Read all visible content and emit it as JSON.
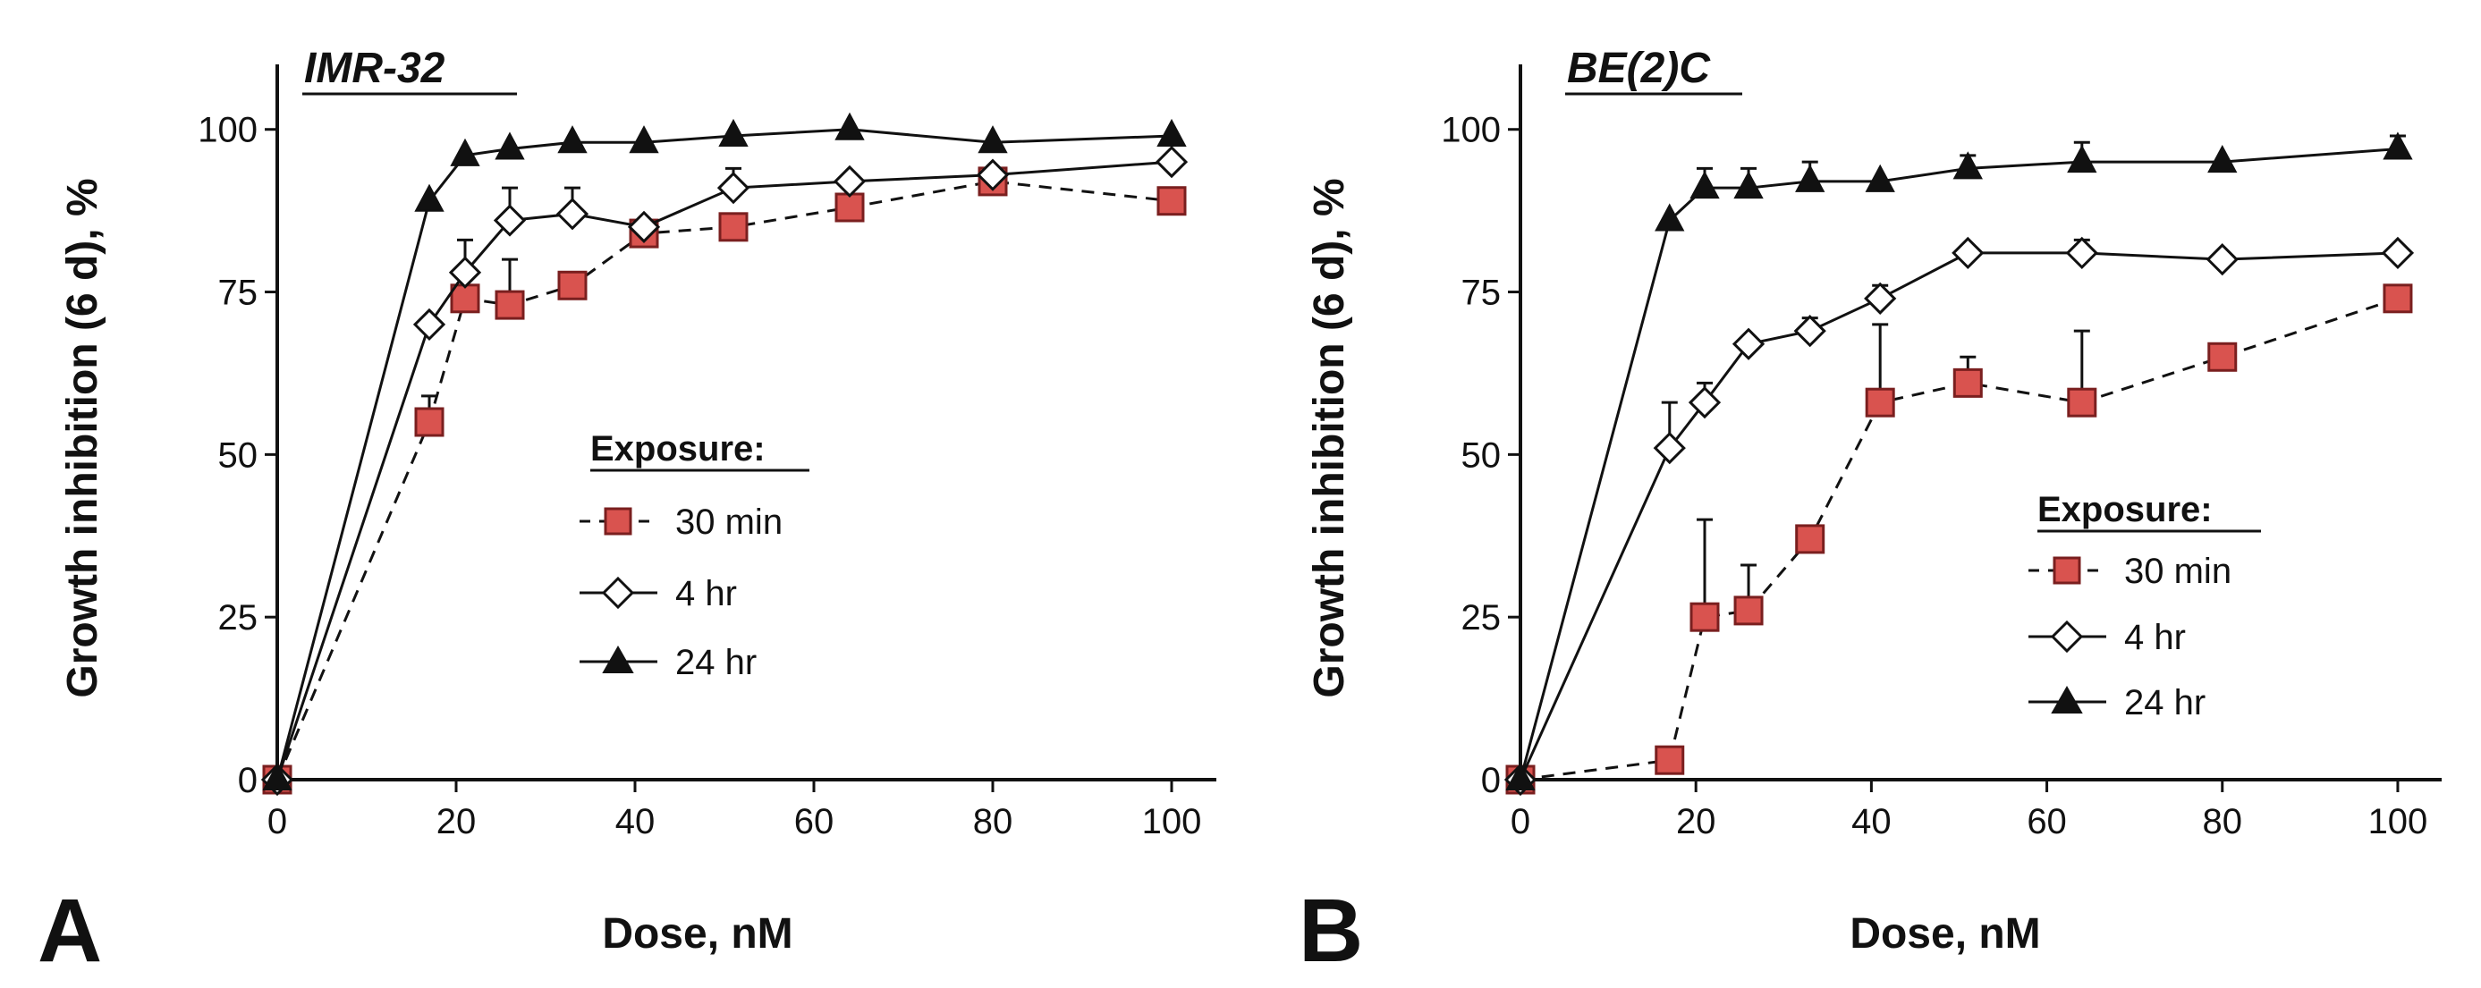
{
  "colors": {
    "axis": "#111111",
    "series_30min_fill": "#d9534f",
    "series_30min_stroke": "#7a1f1f",
    "series_4hr_fill": "#ffffff",
    "series_24hr_fill": "#111111"
  },
  "chart_data": [
    {
      "type": "line",
      "panel_letter": "A",
      "title": "IMR-32",
      "xlabel": "Dose, nM",
      "ylabel": "Growth inhibition (6 d), %",
      "xlim": [
        0,
        105
      ],
      "ylim": [
        0,
        110
      ],
      "xticks": [
        0,
        20,
        40,
        60,
        80,
        100
      ],
      "yticks": [
        0,
        25,
        50,
        75,
        100
      ],
      "grid": false,
      "legend": {
        "title": "Exposure:",
        "placement": "center",
        "entries": [
          "30 min",
          "4 hr",
          "24 hr"
        ]
      },
      "series": [
        {
          "name": "30 min",
          "marker": "square",
          "line": "dashed",
          "x": [
            0,
            17,
            21,
            26,
            33,
            41,
            51,
            64,
            80,
            100
          ],
          "y": [
            0,
            55,
            74,
            73,
            76,
            84,
            85,
            88,
            92,
            89
          ],
          "err": [
            0,
            4,
            4,
            7,
            2,
            0,
            0,
            0,
            0,
            0
          ]
        },
        {
          "name": "4 hr",
          "marker": "diamond",
          "line": "solid",
          "x": [
            0,
            17,
            21,
            26,
            33,
            41,
            51,
            64,
            80,
            100
          ],
          "y": [
            0,
            70,
            78,
            86,
            87,
            85,
            91,
            92,
            93,
            95
          ],
          "err": [
            0,
            0,
            5,
            5,
            4,
            0,
            3,
            0,
            0,
            0
          ]
        },
        {
          "name": "24 hr",
          "marker": "triangle",
          "line": "solid",
          "x": [
            0,
            17,
            21,
            26,
            33,
            41,
            51,
            64,
            80,
            100
          ],
          "y": [
            0,
            89,
            96,
            97,
            98,
            98,
            99,
            100,
            98,
            99
          ],
          "err": [
            0,
            0,
            0,
            0,
            0,
            0,
            0,
            0,
            0,
            0
          ]
        }
      ]
    },
    {
      "type": "line",
      "panel_letter": "B",
      "title": "BE(2)C",
      "xlabel": "Dose, nM",
      "ylabel": "Growth inhibition (6 d), %",
      "xlim": [
        0,
        105
      ],
      "ylim": [
        0,
        110
      ],
      "xticks": [
        0,
        20,
        40,
        60,
        80,
        100
      ],
      "yticks": [
        0,
        25,
        50,
        75,
        100
      ],
      "grid": false,
      "legend": {
        "title": "Exposure:",
        "placement": "bottom-right",
        "entries": [
          "30 min",
          "4 hr",
          "24 hr"
        ]
      },
      "series": [
        {
          "name": "30 min",
          "marker": "square",
          "line": "dashed",
          "x": [
            0,
            17,
            21,
            26,
            33,
            41,
            51,
            64,
            80,
            100
          ],
          "y": [
            0,
            3,
            25,
            26,
            37,
            58,
            61,
            58,
            65,
            74
          ],
          "err": [
            0,
            0,
            15,
            7,
            0,
            12,
            4,
            11,
            0,
            0
          ]
        },
        {
          "name": "4 hr",
          "marker": "diamond",
          "line": "solid",
          "x": [
            0,
            17,
            21,
            26,
            33,
            41,
            51,
            64,
            80,
            100
          ],
          "y": [
            0,
            51,
            58,
            67,
            69,
            74,
            81,
            81,
            80,
            81
          ],
          "err": [
            0,
            7,
            3,
            0,
            2,
            2,
            0,
            2,
            0,
            0
          ]
        },
        {
          "name": "24 hr",
          "marker": "triangle",
          "line": "solid",
          "x": [
            0,
            17,
            21,
            26,
            33,
            41,
            51,
            64,
            80,
            100
          ],
          "y": [
            0,
            86,
            91,
            91,
            92,
            92,
            94,
            95,
            95,
            97
          ],
          "err": [
            0,
            0,
            3,
            3,
            3,
            0,
            2,
            3,
            0,
            2
          ]
        }
      ]
    }
  ]
}
